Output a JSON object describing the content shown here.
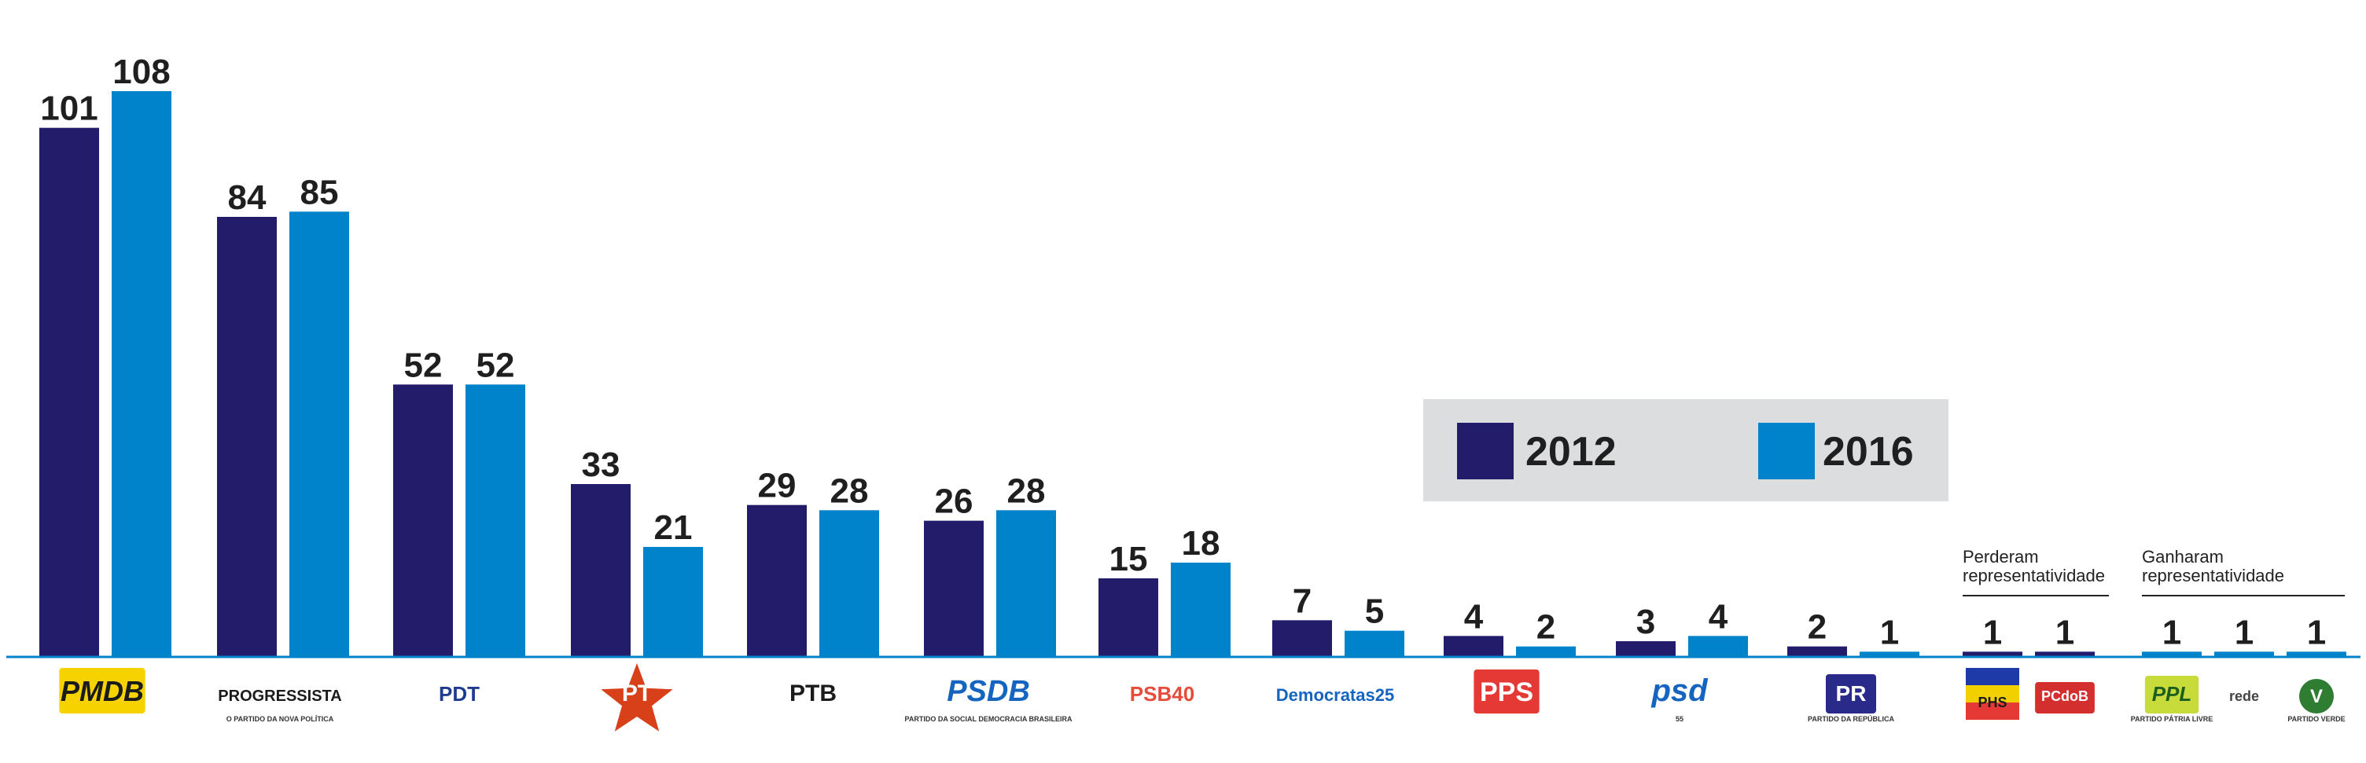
{
  "chart_data": {
    "type": "bar",
    "title": "",
    "xlabel": "",
    "ylabel": "",
    "ylim": [
      0,
      108
    ],
    "grid": false,
    "legend_position": "top-right",
    "categories": [
      "PMDB",
      "PROGRESSISTA",
      "PDT",
      "PT",
      "PTB",
      "PSDB",
      "PSB40",
      "Democratas25",
      "PPS",
      "psd",
      "PR",
      "PHS",
      "PCdoB",
      "PPL",
      "rede",
      "PV"
    ],
    "series": [
      {
        "name": "2012",
        "color": "#221c6b",
        "values": [
          101,
          84,
          52,
          33,
          29,
          26,
          15,
          7,
          4,
          3,
          2,
          1,
          1,
          0,
          0,
          0
        ]
      },
      {
        "name": "2016",
        "color": "#0083cb",
        "values": [
          108,
          85,
          52,
          21,
          28,
          28,
          18,
          5,
          2,
          4,
          1,
          0,
          0,
          1,
          1,
          1
        ]
      }
    ],
    "value_labels": [
      [
        "101",
        "108"
      ],
      [
        "84",
        "85"
      ],
      [
        "52",
        "52"
      ],
      [
        "33",
        "21"
      ],
      [
        "29",
        "28"
      ],
      [
        "26",
        "28"
      ],
      [
        "15",
        "18"
      ],
      [
        "7",
        "5"
      ],
      [
        "4",
        "2"
      ],
      [
        "3",
        "4"
      ],
      [
        "2",
        "1"
      ],
      [
        "1"
      ],
      [
        "1"
      ],
      [
        "1"
      ],
      [
        "1"
      ],
      [
        "1"
      ]
    ],
    "annotations": [
      {
        "lines": [
          "Perderam",
          "representatividade"
        ],
        "applies_to": [
          "PHS",
          "PCdoB"
        ]
      },
      {
        "lines": [
          "Ganharam",
          "representatividade"
        ],
        "applies_to": [
          "PPL",
          "rede",
          "PV"
        ]
      }
    ],
    "party_logos": [
      {
        "party": "PMDB",
        "text": "PMDB",
        "sub": "",
        "icon": "pmdb-logo"
      },
      {
        "party": "PROGRESSISTA",
        "text": "PROGRESSISTA",
        "sub": "O PARTIDO DA NOVA POLÍTICA",
        "icon": "progressista-logo"
      },
      {
        "party": "PDT",
        "text": "PDT",
        "sub": "",
        "icon": "pdt-logo"
      },
      {
        "party": "PT",
        "text": "PT",
        "sub": "",
        "icon": "pt-star-logo"
      },
      {
        "party": "PTB",
        "text": "PTB",
        "sub": "",
        "icon": "ptb-logo"
      },
      {
        "party": "PSDB",
        "text": "PSDB",
        "sub": "PARTIDO DA SOCIAL DEMOCRACIA BRASILEIRA",
        "icon": "psdb-logo"
      },
      {
        "party": "PSB40",
        "text": "PSB40",
        "sub": "",
        "icon": "psb-dove-logo"
      },
      {
        "party": "Democratas25",
        "text": "Democratas25",
        "sub": "",
        "icon": "democratas-tree-logo"
      },
      {
        "party": "PPS",
        "text": "PPS",
        "sub": "",
        "icon": "pps-logo"
      },
      {
        "party": "psd",
        "text": "psd",
        "sub": "55",
        "icon": "psd-logo"
      },
      {
        "party": "PR",
        "text": "PR",
        "sub": "PARTIDO DA REPÚBLICA",
        "icon": "pr-logo"
      },
      {
        "party": "PHS",
        "text": "PHS",
        "sub": "",
        "icon": "phs-flag-logo"
      },
      {
        "party": "PCdoB",
        "text": "PCdoB",
        "sub": "",
        "icon": "pcdob-logo"
      },
      {
        "party": "PPL",
        "text": "PPL",
        "sub": "PARTIDO PÁTRIA LIVRE",
        "icon": "ppl-logo"
      },
      {
        "party": "rede",
        "text": "rede",
        "sub": "",
        "icon": "rede-logo"
      },
      {
        "party": "PV",
        "text": "V",
        "sub": "PARTIDO VERDE",
        "icon": "pv-logo"
      }
    ]
  },
  "legend": {
    "items": [
      {
        "label": "2012",
        "color": "#221c6b"
      },
      {
        "label": "2016",
        "color": "#0083cb"
      }
    ]
  },
  "colors": {
    "series_2012": "#221c6b",
    "series_2016": "#0083cb",
    "legend_box": "#dcdddf",
    "baseline": "#0083cb"
  }
}
